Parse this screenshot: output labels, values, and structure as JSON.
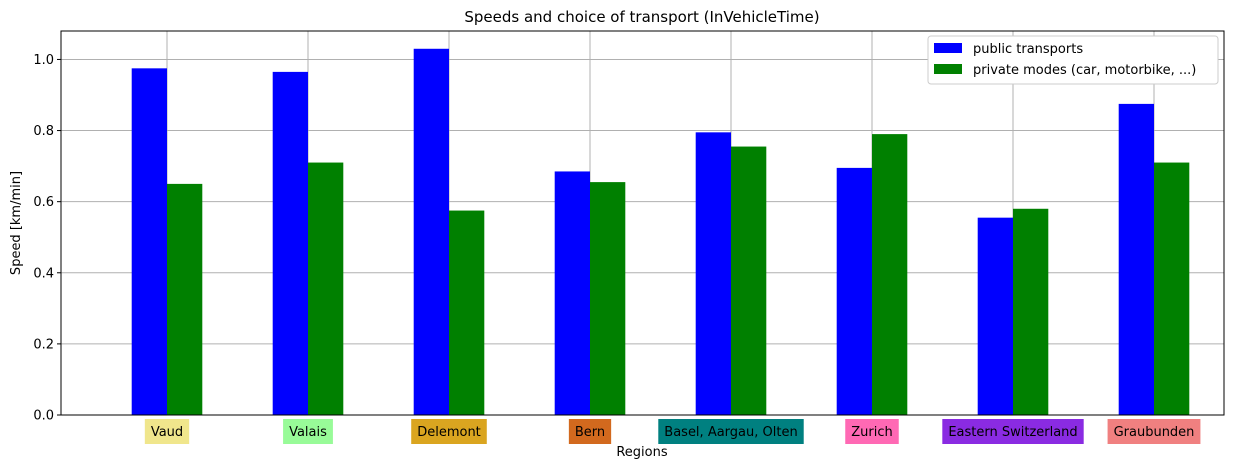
{
  "chart_data": {
    "type": "bar",
    "title": "Speeds and choice of transport (InVehicleTime)",
    "xlabel": "Regions",
    "ylabel": "Speed [km/min]",
    "ylim": [
      0,
      1.08
    ],
    "yticks": [
      "0.0",
      "0.2",
      "0.4",
      "0.6",
      "0.8",
      "1.0"
    ],
    "grid": true,
    "legend_position": "top-right",
    "categories": [
      "Vaud",
      "Valais",
      "Delemont",
      "Bern",
      "Basel, Aargau, Olten",
      "Zurich",
      "Eastern Switzerland",
      "Graubunden"
    ],
    "category_colors": [
      "#f0e68c",
      "#98fb98",
      "#daa520",
      "#d2691e",
      "#008080",
      "#ff69b4",
      "#8a2be2",
      "#f08080"
    ],
    "series": [
      {
        "name": "public transports",
        "color": "#0000ff",
        "values": [
          0.975,
          0.965,
          1.03,
          0.685,
          0.795,
          0.695,
          0.555,
          0.875
        ]
      },
      {
        "name": "private modes (car, motorbike, ...)",
        "color": "#008000",
        "values": [
          0.65,
          0.71,
          0.575,
          0.655,
          0.755,
          0.79,
          0.58,
          0.71
        ]
      }
    ]
  }
}
